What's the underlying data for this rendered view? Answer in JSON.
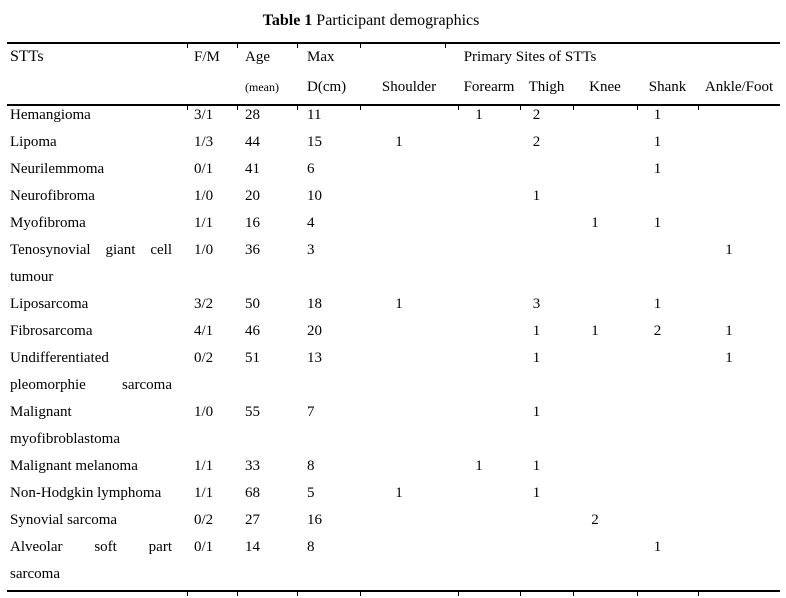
{
  "title": {
    "bold": "Table 1",
    "text": "Participant demographics"
  },
  "table": {
    "headers": {
      "stts": "STTs",
      "fm": "F/M",
      "age": [
        "Age",
        "(mean)"
      ],
      "max": [
        "Max",
        "D(cm)"
      ],
      "primary_sites": "Primary Sites of STTs",
      "sites": [
        "Shoulder",
        "Forearm",
        "Thigh",
        "Knee",
        "Shank",
        "Ankle/Foot"
      ]
    },
    "rows": [
      {
        "name_lines": [
          "Hemangioma"
        ],
        "fm": "3/1",
        "age": "28",
        "max_d": "11",
        "sites": [
          "",
          "1",
          "2",
          "",
          "1",
          ""
        ]
      },
      {
        "name_lines": [
          "Lipoma"
        ],
        "fm": "1/3",
        "age": "44",
        "max_d": "15",
        "sites": [
          "1",
          "",
          "2",
          "",
          "1",
          ""
        ]
      },
      {
        "name_lines": [
          "Neurilemmoma"
        ],
        "fm": "0/1",
        "age": "41",
        "max_d": "6",
        "sites": [
          "",
          "",
          "",
          "",
          "1",
          ""
        ]
      },
      {
        "name_lines": [
          "Neurofibroma"
        ],
        "fm": "1/0",
        "age": "20",
        "max_d": "10",
        "sites": [
          "",
          "",
          "1",
          "",
          "",
          ""
        ]
      },
      {
        "name_lines": [
          "Myofibroma"
        ],
        "fm": "1/1",
        "age": "16",
        "max_d": "4",
        "sites": [
          "",
          "",
          "",
          "1",
          "1",
          ""
        ]
      },
      {
        "name_lines": [
          "Tenosynovial giant cell",
          "tumour"
        ],
        "fm": "1/0",
        "age": "36",
        "max_d": "3",
        "sites": [
          "",
          "",
          "",
          "",
          "",
          "1"
        ]
      },
      {
        "name_lines": [
          "Liposarcoma"
        ],
        "fm": "3/2",
        "age": "50",
        "max_d": "18",
        "sites": [
          "1",
          "",
          "3",
          "",
          "1",
          ""
        ]
      },
      {
        "name_lines": [
          "Fibrosarcoma"
        ],
        "fm": "4/1",
        "age": "46",
        "max_d": "20",
        "sites": [
          "",
          "",
          "1",
          "1",
          "2",
          "1"
        ]
      },
      {
        "name_lines": [
          "Undifferentiated",
          "pleomorphie sarcoma"
        ],
        "fm": "0/2",
        "age": "51",
        "max_d": "13",
        "sites": [
          "",
          "",
          "1",
          "",
          "",
          "1"
        ]
      },
      {
        "name_lines": [
          "Malignant",
          "myofibroblastoma"
        ],
        "fm": "1/0",
        "age": "55",
        "max_d": "7",
        "sites": [
          "",
          "",
          "1",
          "",
          "",
          ""
        ]
      },
      {
        "name_lines": [
          "Malignant melanoma"
        ],
        "fm": "1/1",
        "age": "33",
        "max_d": "8",
        "sites": [
          "",
          "1",
          "1",
          "",
          "",
          ""
        ]
      },
      {
        "name_lines": [
          "Non-Hodgkin lymphoma"
        ],
        "fm": "1/1",
        "age": "68",
        "max_d": "5",
        "sites": [
          "1",
          "",
          "1",
          "",
          "",
          ""
        ]
      },
      {
        "name_lines": [
          "Synovial sarcoma"
        ],
        "fm": "0/2",
        "age": "27",
        "max_d": "16",
        "sites": [
          "",
          "",
          "",
          "2",
          "",
          ""
        ]
      },
      {
        "name_lines": [
          "Alveolar soft part",
          "sarcoma"
        ],
        "fm": "0/1",
        "age": "14",
        "max_d": "8",
        "sites": [
          "",
          "",
          "",
          "",
          "1",
          ""
        ]
      }
    ]
  }
}
